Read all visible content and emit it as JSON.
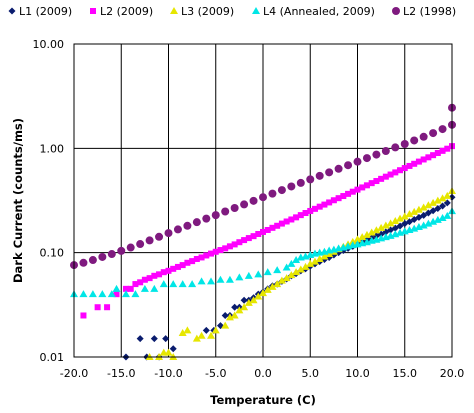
{
  "chart_data": {
    "type": "scatter",
    "title": "",
    "xlabel": "Temperature (C)",
    "ylabel": "Dark Current (counts/ms)",
    "xlim": [
      -20,
      20
    ],
    "ylim": [
      0.01,
      10
    ],
    "x_scale": "linear",
    "y_scale": "log",
    "grid": true,
    "legend_position": "top",
    "x_ticks": [
      "-20.0",
      "-15.0",
      "-10.0",
      "-5.0",
      "0.0",
      "5.0",
      "10.0",
      "15.0",
      "20.0"
    ],
    "y_ticks": [
      "0.01",
      "0.10",
      "1.00",
      "10.00"
    ],
    "series": [
      {
        "name": "L1 (2009)",
        "marker": "diamond",
        "color": "#0a1c6e",
        "points": [
          [
            -14.5,
            0.01
          ],
          [
            -13.0,
            0.015
          ],
          [
            -12.3,
            0.01
          ],
          [
            -11.5,
            0.015
          ],
          [
            -11.0,
            0.01
          ],
          [
            -10.3,
            0.015
          ],
          [
            -9.5,
            0.012
          ],
          [
            -6.0,
            0.018
          ],
          [
            -5.2,
            0.018
          ],
          [
            -4.5,
            0.02
          ],
          [
            -4.0,
            0.025
          ],
          [
            -3.5,
            0.025
          ],
          [
            -3.0,
            0.03
          ],
          [
            -2.5,
            0.03
          ],
          [
            -2.0,
            0.035
          ],
          [
            -1.5,
            0.035
          ],
          [
            -1.0,
            0.037
          ],
          [
            -0.5,
            0.04
          ],
          [
            0.0,
            0.042
          ],
          [
            0.5,
            0.045
          ],
          [
            1.0,
            0.048
          ],
          [
            1.5,
            0.05
          ],
          [
            2.0,
            0.053
          ],
          [
            2.5,
            0.056
          ],
          [
            3.0,
            0.06
          ],
          [
            3.5,
            0.063
          ],
          [
            4.0,
            0.067
          ],
          [
            4.5,
            0.07
          ],
          [
            5.0,
            0.074
          ],
          [
            5.5,
            0.078
          ],
          [
            6.0,
            0.082
          ],
          [
            6.5,
            0.086
          ],
          [
            7.0,
            0.09
          ],
          [
            7.5,
            0.095
          ],
          [
            8.0,
            0.1
          ],
          [
            8.5,
            0.105
          ],
          [
            9.0,
            0.11
          ],
          [
            9.5,
            0.115
          ],
          [
            10.0,
            0.12
          ],
          [
            10.5,
            0.126
          ],
          [
            11.0,
            0.132
          ],
          [
            11.5,
            0.138
          ],
          [
            12.0,
            0.145
          ],
          [
            12.5,
            0.15
          ],
          [
            13.0,
            0.158
          ],
          [
            13.5,
            0.165
          ],
          [
            14.0,
            0.172
          ],
          [
            14.5,
            0.18
          ],
          [
            15.0,
            0.19
          ],
          [
            15.5,
            0.198
          ],
          [
            16.0,
            0.208
          ],
          [
            16.5,
            0.218
          ],
          [
            17.0,
            0.228
          ],
          [
            17.5,
            0.24
          ],
          [
            18.0,
            0.252
          ],
          [
            18.5,
            0.265
          ],
          [
            19.0,
            0.28
          ],
          [
            19.5,
            0.3
          ],
          [
            20.0,
            0.34
          ]
        ]
      },
      {
        "name": "L2 (2009)",
        "marker": "square",
        "color": "#ff00ff",
        "points": [
          [
            -19.0,
            0.025
          ],
          [
            -17.5,
            0.03
          ],
          [
            -16.5,
            0.03
          ],
          [
            -15.5,
            0.04
          ],
          [
            -14.5,
            0.045
          ],
          [
            -14.0,
            0.045
          ],
          [
            -13.5,
            0.05
          ],
          [
            -13.0,
            0.052
          ],
          [
            -12.5,
            0.055
          ],
          [
            -12.0,
            0.057
          ],
          [
            -11.5,
            0.06
          ],
          [
            -11.0,
            0.062
          ],
          [
            -10.5,
            0.065
          ],
          [
            -10.0,
            0.067
          ],
          [
            -9.5,
            0.07
          ],
          [
            -9.0,
            0.073
          ],
          [
            -8.5,
            0.076
          ],
          [
            -8.0,
            0.08
          ],
          [
            -7.5,
            0.083
          ],
          [
            -7.0,
            0.087
          ],
          [
            -6.5,
            0.09
          ],
          [
            -6.0,
            0.094
          ],
          [
            -5.5,
            0.098
          ],
          [
            -5.0,
            0.102
          ],
          [
            -4.5,
            0.106
          ],
          [
            -4.0,
            0.11
          ],
          [
            -3.5,
            0.115
          ],
          [
            -3.0,
            0.12
          ],
          [
            -2.5,
            0.126
          ],
          [
            -2.0,
            0.132
          ],
          [
            -1.5,
            0.138
          ],
          [
            -1.0,
            0.144
          ],
          [
            -0.5,
            0.151
          ],
          [
            0.0,
            0.158
          ],
          [
            0.5,
            0.165
          ],
          [
            1.0,
            0.173
          ],
          [
            1.5,
            0.181
          ],
          [
            2.0,
            0.19
          ],
          [
            2.5,
            0.199
          ],
          [
            3.0,
            0.208
          ],
          [
            3.5,
            0.218
          ],
          [
            4.0,
            0.229
          ],
          [
            4.5,
            0.24
          ],
          [
            5.0,
            0.251
          ],
          [
            5.5,
            0.263
          ],
          [
            6.0,
            0.276
          ],
          [
            6.5,
            0.289
          ],
          [
            7.0,
            0.303
          ],
          [
            7.5,
            0.318
          ],
          [
            8.0,
            0.333
          ],
          [
            8.5,
            0.349
          ],
          [
            9.0,
            0.366
          ],
          [
            9.5,
            0.384
          ],
          [
            10.0,
            0.402
          ],
          [
            10.5,
            0.422
          ],
          [
            11.0,
            0.442
          ],
          [
            11.5,
            0.464
          ],
          [
            12.0,
            0.486
          ],
          [
            12.5,
            0.51
          ],
          [
            13.0,
            0.535
          ],
          [
            13.5,
            0.561
          ],
          [
            14.0,
            0.588
          ],
          [
            14.5,
            0.617
          ],
          [
            15.0,
            0.647
          ],
          [
            15.5,
            0.678
          ],
          [
            16.0,
            0.711
          ],
          [
            16.5,
            0.746
          ],
          [
            17.0,
            0.782
          ],
          [
            17.5,
            0.82
          ],
          [
            18.0,
            0.86
          ],
          [
            18.5,
            0.902
          ],
          [
            19.0,
            0.946
          ],
          [
            19.5,
            0.992
          ],
          [
            20.0,
            1.05
          ]
        ]
      },
      {
        "name": "L3 (2009)",
        "marker": "triangle",
        "color": "#e6e600",
        "points": [
          [
            -12.0,
            0.01
          ],
          [
            -11.0,
            0.01
          ],
          [
            -10.5,
            0.011
          ],
          [
            -10.0,
            0.011
          ],
          [
            -9.5,
            0.01
          ],
          [
            -8.5,
            0.017
          ],
          [
            -8.0,
            0.018
          ],
          [
            -7.0,
            0.015
          ],
          [
            -6.5,
            0.016
          ],
          [
            -5.5,
            0.016
          ],
          [
            -5.0,
            0.018
          ],
          [
            -4.0,
            0.02
          ],
          [
            -3.5,
            0.024
          ],
          [
            -3.0,
            0.025
          ],
          [
            -2.5,
            0.028
          ],
          [
            -2.0,
            0.03
          ],
          [
            -1.5,
            0.033
          ],
          [
            -1.0,
            0.035
          ],
          [
            -0.5,
            0.038
          ],
          [
            0.0,
            0.041
          ],
          [
            0.5,
            0.044
          ],
          [
            1.0,
            0.047
          ],
          [
            1.5,
            0.05
          ],
          [
            2.0,
            0.054
          ],
          [
            2.5,
            0.057
          ],
          [
            3.0,
            0.061
          ],
          [
            3.5,
            0.065
          ],
          [
            4.0,
            0.069
          ],
          [
            4.5,
            0.073
          ],
          [
            5.0,
            0.078
          ],
          [
            5.5,
            0.082
          ],
          [
            6.0,
            0.087
          ],
          [
            6.5,
            0.092
          ],
          [
            7.0,
            0.097
          ],
          [
            7.5,
            0.102
          ],
          [
            8.0,
            0.108
          ],
          [
            8.5,
            0.114
          ],
          [
            9.0,
            0.12
          ],
          [
            9.5,
            0.127
          ],
          [
            10.0,
            0.134
          ],
          [
            10.5,
            0.141
          ],
          [
            11.0,
            0.148
          ],
          [
            11.5,
            0.156
          ],
          [
            12.0,
            0.164
          ],
          [
            12.5,
            0.173
          ],
          [
            13.0,
            0.182
          ],
          [
            13.5,
            0.191
          ],
          [
            14.0,
            0.201
          ],
          [
            14.5,
            0.212
          ],
          [
            15.0,
            0.222
          ],
          [
            15.5,
            0.234
          ],
          [
            16.0,
            0.246
          ],
          [
            16.5,
            0.258
          ],
          [
            17.0,
            0.271
          ],
          [
            17.5,
            0.285
          ],
          [
            18.0,
            0.3
          ],
          [
            18.5,
            0.315
          ],
          [
            19.0,
            0.331
          ],
          [
            19.5,
            0.35
          ],
          [
            20.0,
            0.39
          ]
        ]
      },
      {
        "name": "L4 (Annealed, 2009)",
        "marker": "triangle",
        "color": "#00e6e6",
        "points": [
          [
            -20.0,
            0.04
          ],
          [
            -19.0,
            0.04
          ],
          [
            -18.0,
            0.04
          ],
          [
            -17.0,
            0.04
          ],
          [
            -16.0,
            0.04
          ],
          [
            -15.5,
            0.045
          ],
          [
            -14.5,
            0.04
          ],
          [
            -13.5,
            0.04
          ],
          [
            -12.5,
            0.045
          ],
          [
            -11.5,
            0.045
          ],
          [
            -10.5,
            0.05
          ],
          [
            -9.5,
            0.05
          ],
          [
            -8.5,
            0.05
          ],
          [
            -7.5,
            0.05
          ],
          [
            -6.5,
            0.053
          ],
          [
            -5.5,
            0.053
          ],
          [
            -4.5,
            0.055
          ],
          [
            -3.5,
            0.055
          ],
          [
            -2.5,
            0.058
          ],
          [
            -1.5,
            0.06
          ],
          [
            -0.5,
            0.062
          ],
          [
            0.5,
            0.065
          ],
          [
            1.5,
            0.068
          ],
          [
            2.5,
            0.072
          ],
          [
            3.0,
            0.078
          ],
          [
            3.5,
            0.085
          ],
          [
            4.0,
            0.09
          ],
          [
            4.5,
            0.092
          ],
          [
            5.0,
            0.095
          ],
          [
            5.5,
            0.098
          ],
          [
            6.0,
            0.1
          ],
          [
            6.5,
            0.102
          ],
          [
            7.0,
            0.105
          ],
          [
            7.5,
            0.107
          ],
          [
            8.0,
            0.11
          ],
          [
            8.5,
            0.112
          ],
          [
            9.0,
            0.115
          ],
          [
            9.5,
            0.118
          ],
          [
            10.0,
            0.12
          ],
          [
            10.5,
            0.123
          ],
          [
            11.0,
            0.126
          ],
          [
            11.5,
            0.13
          ],
          [
            12.0,
            0.133
          ],
          [
            12.5,
            0.137
          ],
          [
            13.0,
            0.141
          ],
          [
            13.5,
            0.145
          ],
          [
            14.0,
            0.15
          ],
          [
            14.5,
            0.155
          ],
          [
            15.0,
            0.16
          ],
          [
            15.5,
            0.165
          ],
          [
            16.0,
            0.17
          ],
          [
            16.5,
            0.176
          ],
          [
            17.0,
            0.182
          ],
          [
            17.5,
            0.19
          ],
          [
            18.0,
            0.198
          ],
          [
            18.5,
            0.206
          ],
          [
            19.0,
            0.215
          ],
          [
            19.5,
            0.225
          ],
          [
            20.0,
            0.25
          ]
        ]
      },
      {
        "name": "L2 (1998)",
        "marker": "circle",
        "color": "#7f1a7f",
        "points": [
          [
            -20.0,
            0.076
          ],
          [
            -19.0,
            0.08
          ],
          [
            -18.0,
            0.085
          ],
          [
            -17.0,
            0.091
          ],
          [
            -16.0,
            0.097
          ],
          [
            -15.0,
            0.104
          ],
          [
            -14.0,
            0.112
          ],
          [
            -13.0,
            0.121
          ],
          [
            -12.0,
            0.131
          ],
          [
            -11.0,
            0.142
          ],
          [
            -10.0,
            0.154
          ],
          [
            -9.0,
            0.167
          ],
          [
            -8.0,
            0.181
          ],
          [
            -7.0,
            0.196
          ],
          [
            -6.0,
            0.212
          ],
          [
            -5.0,
            0.229
          ],
          [
            -4.0,
            0.248
          ],
          [
            -3.0,
            0.268
          ],
          [
            -2.0,
            0.29
          ],
          [
            -1.0,
            0.314
          ],
          [
            0.0,
            0.34
          ],
          [
            1.0,
            0.368
          ],
          [
            2.0,
            0.398
          ],
          [
            3.0,
            0.431
          ],
          [
            4.0,
            0.466
          ],
          [
            5.0,
            0.504
          ],
          [
            6.0,
            0.545
          ],
          [
            7.0,
            0.589
          ],
          [
            8.0,
            0.637
          ],
          [
            9.0,
            0.689
          ],
          [
            10.0,
            0.745
          ],
          [
            11.0,
            0.806
          ],
          [
            12.0,
            0.871
          ],
          [
            13.0,
            0.942
          ],
          [
            14.0,
            1.02
          ],
          [
            15.0,
            1.1
          ],
          [
            16.0,
            1.19
          ],
          [
            17.0,
            1.29
          ],
          [
            18.0,
            1.4
          ],
          [
            19.0,
            1.53
          ],
          [
            20.0,
            1.68
          ],
          [
            20.0,
            2.45
          ]
        ]
      }
    ]
  }
}
